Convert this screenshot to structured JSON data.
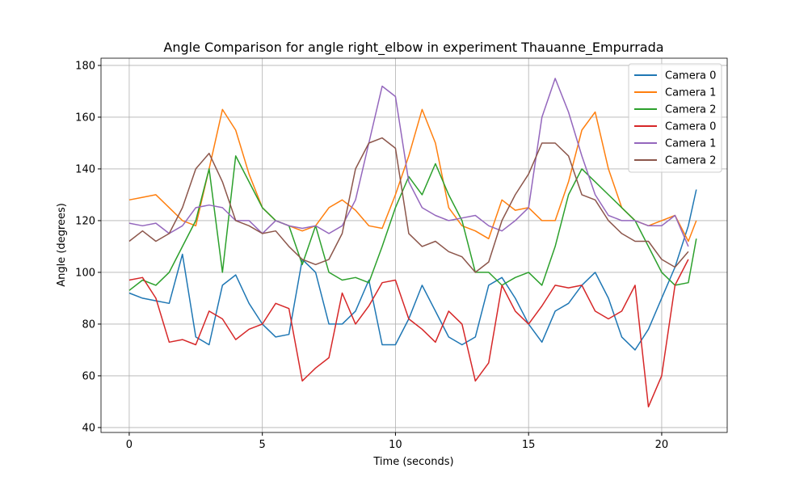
{
  "chart_data": {
    "type": "line",
    "title": "Angle Comparison for angle right_elbow in experiment Thauanne_Empurrada",
    "xlabel": "Time (seconds)",
    "ylabel": "Angle (degrees)",
    "x": [
      0,
      0.5,
      1,
      1.5,
      2,
      2.5,
      3,
      3.5,
      4,
      4.5,
      5,
      5.5,
      6,
      6.5,
      7,
      7.5,
      8,
      8.5,
      9,
      9.5,
      10,
      10.5,
      11,
      11.5,
      12,
      12.5,
      13,
      13.5,
      14,
      14.5,
      15,
      15.5,
      16,
      16.5,
      17,
      17.5,
      18,
      18.5,
      19,
      19.5,
      20,
      20.5,
      21,
      21.3
    ],
    "series": [
      {
        "name": "Camera 0",
        "color": "#1f77b4",
        "values": [
          92,
          90,
          89,
          88,
          107,
          75,
          72,
          95,
          99,
          88,
          80,
          75,
          76,
          105,
          100,
          80,
          80,
          85,
          97,
          72,
          72,
          82,
          95,
          85,
          75,
          72,
          75,
          95,
          98,
          90,
          80,
          73,
          85,
          88,
          95,
          100,
          90,
          75,
          70,
          78,
          90,
          102,
          118,
          132
        ]
      },
      {
        "name": "Camera 1",
        "color": "#ff7f0e",
        "values": [
          128,
          129,
          130,
          125,
          120,
          118,
          140,
          163,
          155,
          138,
          125,
          120,
          118,
          116,
          118,
          125,
          128,
          124,
          118,
          117,
          130,
          145,
          163,
          150,
          125,
          118,
          116,
          113,
          128,
          124,
          125,
          120,
          120,
          135,
          155,
          162,
          140,
          125,
          120,
          118,
          120,
          122,
          112,
          120
        ]
      },
      {
        "name": "Camera 2",
        "color": "#2ca02c",
        "values": [
          93,
          97,
          95,
          100,
          110,
          120,
          140,
          100,
          145,
          135,
          125,
          120,
          118,
          103,
          118,
          100,
          97,
          98,
          96,
          110,
          125,
          137,
          130,
          142,
          130,
          120,
          100,
          100,
          95,
          98,
          100,
          95,
          110,
          130,
          140,
          135,
          130,
          125,
          120,
          110,
          100,
          95,
          96,
          113
        ]
      },
      {
        "name": "Camera 0",
        "color": "#d62728",
        "values": [
          97,
          98,
          90,
          73,
          74,
          72,
          85,
          82,
          74,
          78,
          80,
          88,
          86,
          58,
          63,
          67,
          92,
          80,
          87,
          96,
          97,
          82,
          78,
          73,
          85,
          80,
          58,
          65,
          95,
          85,
          80,
          87,
          95,
          94,
          95,
          85,
          82,
          85,
          95,
          48,
          60,
          95,
          105,
          null
        ]
      },
      {
        "name": "Camera 1",
        "color": "#9467bd",
        "values": [
          119,
          118,
          119,
          115,
          118,
          125,
          126,
          125,
          120,
          120,
          115,
          120,
          118,
          117,
          118,
          115,
          118,
          128,
          150,
          172,
          168,
          135,
          125,
          122,
          120,
          121,
          122,
          118,
          116,
          120,
          125,
          160,
          175,
          162,
          145,
          130,
          122,
          120,
          120,
          118,
          118,
          122,
          110,
          null
        ]
      },
      {
        "name": "Camera 2",
        "color": "#8c564b",
        "values": [
          112,
          116,
          112,
          115,
          125,
          140,
          146,
          135,
          120,
          118,
          115,
          116,
          110,
          105,
          103,
          105,
          115,
          140,
          150,
          152,
          148,
          115,
          110,
          112,
          108,
          106,
          100,
          104,
          120,
          130,
          138,
          150,
          150,
          145,
          130,
          128,
          120,
          115,
          112,
          112,
          105,
          102,
          108,
          null
        ]
      }
    ],
    "xlim": [
      -1.06,
      22.46
    ],
    "ylim": [
      38.1,
      182.8
    ],
    "xticks": [
      0,
      5,
      10,
      15,
      20
    ],
    "yticks": [
      40,
      60,
      80,
      100,
      120,
      140,
      160,
      180
    ],
    "grid": true,
    "legend": "upper right"
  }
}
